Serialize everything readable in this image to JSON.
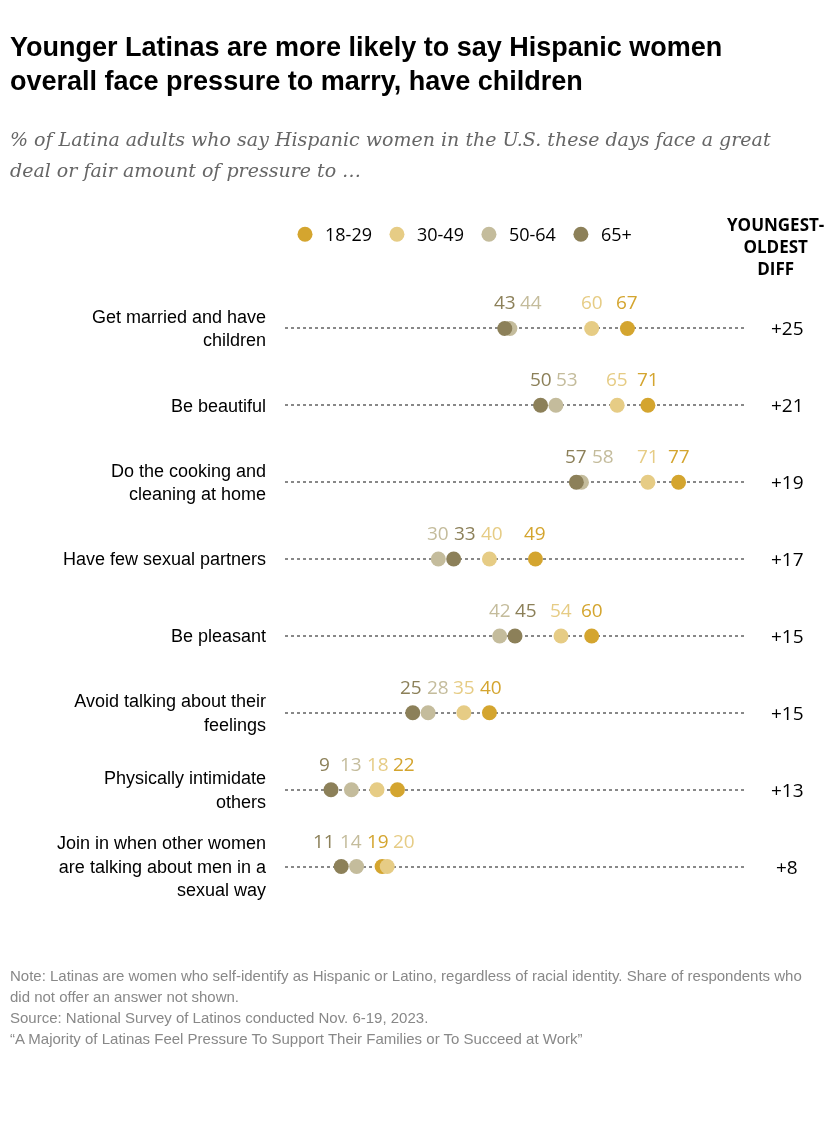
{
  "chart_data": {
    "type": "scatter",
    "orientation": "horizontal",
    "title": "Younger Latinas are more likely to say Hispanic women overall face pressure to marry, have children",
    "subtitle": "% of Latina adults who say Hispanic women in the U.S. these days face a great deal or fair amount of pressure to …",
    "categories": [
      "Get married and have children",
      "Be beautiful",
      "Do the cooking and cleaning at home",
      "Have few sexual partners",
      "Be pleasant",
      "Avoid talking about their feelings",
      "Physically intimidate others",
      "Join in when other women are talking about men in a sexual way"
    ],
    "series": [
      {
        "name": "18-29",
        "color": "#d4a52f",
        "values": [
          67,
          71,
          77,
          49,
          60,
          40,
          22,
          19
        ]
      },
      {
        "name": "30-49",
        "color": "#e6cc85",
        "values": [
          60,
          65,
          71,
          40,
          54,
          35,
          18,
          20
        ]
      },
      {
        "name": "50-64",
        "color": "#c4bc9c",
        "values": [
          44,
          53,
          58,
          30,
          42,
          28,
          13,
          14
        ]
      },
      {
        "name": "65+",
        "color": "#8c8059",
        "values": [
          43,
          50,
          57,
          33,
          45,
          25,
          9,
          11
        ]
      }
    ],
    "xlim": [
      0,
      90
    ],
    "tick_labels": "y",
    "grid": "y",
    "legend": "top left",
    "marker": "circle",
    "data_labels": true,
    "annotations": [
      "YOUNGEST-OLDEST DIFF",
      "+25",
      "+21",
      "+19",
      "+17",
      "+15",
      "+15",
      "+13",
      "+8",
      "Note: Latinas are women who self-identify as Hispanic or Latino, regardless of racial identity. Share of respondents who did not offer an answer not shown.",
      "Source: National Survey of Latinos conducted Nov. 6-19, 2023.",
      "“A Majority of Latinas Feel Pressure To Support Their Families or To Succeed at Work”"
    ]
  }
}
